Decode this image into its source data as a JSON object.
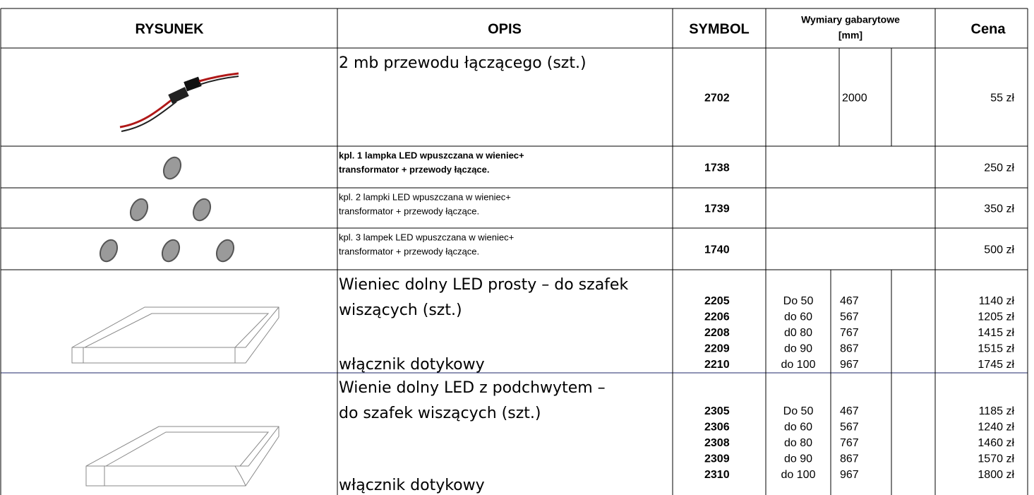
{
  "header": {
    "drawing": "RYSUNEK",
    "description": "OPIS",
    "symbol": "SYMBOL",
    "dimensions": [
      "Wymiary gabarytowe",
      "[mm]"
    ],
    "price": "Cena"
  },
  "rows": [
    {
      "description": [
        "2 mb przewodu łączącego (szt.)"
      ],
      "items": [
        {
          "symbol": "2702",
          "length": "2000",
          "price": "55 zł"
        }
      ]
    },
    {
      "description": [
        "kpl. 1 lampka LED wpuszczana w wieniec+",
        "transformator + przewody łączące."
      ],
      "items": [
        {
          "symbol": "1738",
          "price": "250 zł"
        }
      ]
    },
    {
      "description": [
        "kpl. 2 lampki LED wpuszczana w wieniec+",
        "transformator + przewody łączące."
      ],
      "items": [
        {
          "symbol": "1739",
          "price": "350 zł"
        }
      ]
    },
    {
      "description": [
        "kpl. 3 lampek LED wpuszczana w wieniec+",
        "transformator + przewody łączące."
      ],
      "items": [
        {
          "symbol": "1740",
          "price": "500 zł"
        }
      ]
    },
    {
      "description": [
        "Wieniec dolny LED prosty – do szafek",
        "wiszących (szt.)"
      ],
      "note": "włącznik dotykowy",
      "items": [
        {
          "symbol": "2205",
          "width": "Do 50",
          "length": "467",
          "price": "1140 zł"
        },
        {
          "symbol": "2206",
          "width": "do 60",
          "length": "567",
          "price": "1205 zł"
        },
        {
          "symbol": "2208",
          "width": "d0 80",
          "length": "767",
          "price": "1415 zł"
        },
        {
          "symbol": "2209",
          "width": "do 90",
          "length": "867",
          "price": "1515 zł"
        },
        {
          "symbol": "2210",
          "width": "do 100",
          "length": "967",
          "price": "1745 zł"
        }
      ]
    },
    {
      "description": [
        "Wienie dolny  LED z podchwytem –",
        "do szafek wiszących (szt.)"
      ],
      "note": "włącznik dotykowy",
      "items": [
        {
          "symbol": "2305",
          "width": "Do 50",
          "length": "467",
          "price": "1185 zł"
        },
        {
          "symbol": "2306",
          "width": "do 60",
          "length": "567",
          "price": "1240 zł"
        },
        {
          "symbol": "2308",
          "width": "do 80",
          "length": "767",
          "price": "1460 zł"
        },
        {
          "symbol": "2309",
          "width": "do 90",
          "length": "867",
          "price": "1570 zł"
        },
        {
          "symbol": "2310",
          "width": "do 100",
          "length": "967",
          "price": "1800 zł"
        }
      ]
    }
  ]
}
